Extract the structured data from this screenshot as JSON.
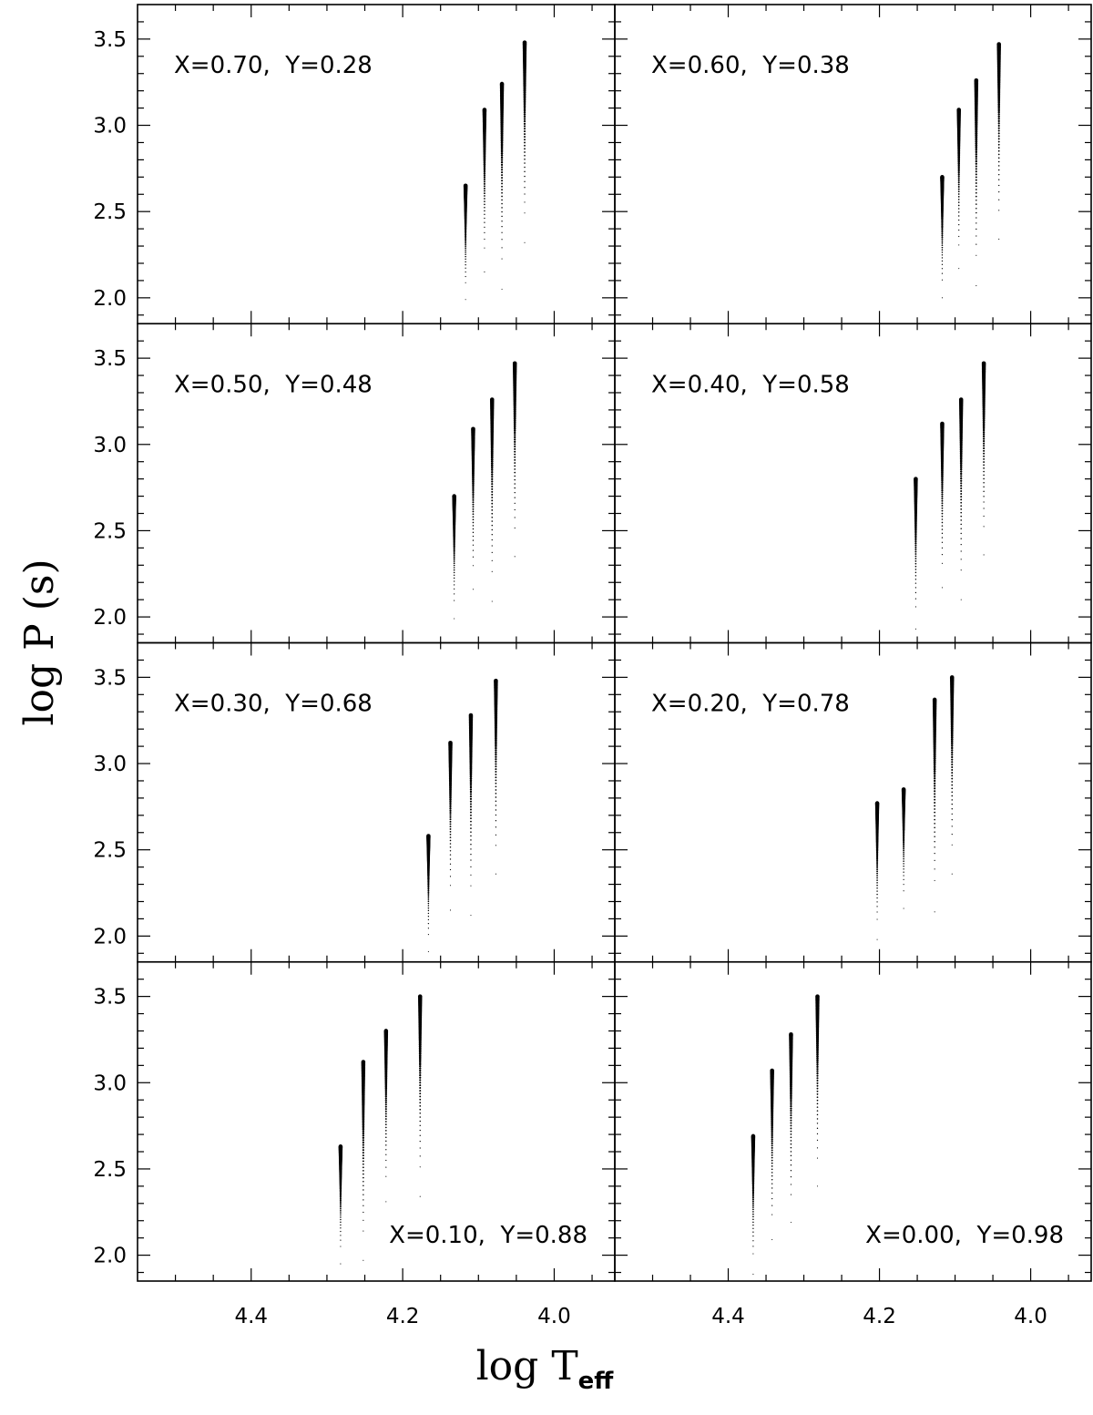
{
  "chart_data": {
    "type": "scatter",
    "layout": "4x2 grid of panels, shared axes",
    "xlabel": "log T",
    "xlabel_sub": "eff",
    "ylabel": "log P (s)",
    "x_reversed": true,
    "xlim": [
      4.55,
      3.92
    ],
    "ylim": [
      1.85,
      3.7
    ],
    "x_ticks": [
      4.4,
      4.2,
      4.0
    ],
    "x_tick_labels": [
      "4.4",
      "4.2",
      "4.0"
    ],
    "y_ticks": [
      2.0,
      2.5,
      3.0,
      3.5
    ],
    "y_tick_labels": [
      "2.0",
      "2.5",
      "3.0",
      "3.5"
    ],
    "panels": [
      {
        "label": "X=0.70,  Y=0.28",
        "label_pos": "top-left",
        "columns": [
          {
            "x": 4.117,
            "y_min": 1.99,
            "y_max": 2.65
          },
          {
            "x": 4.092,
            "y_min": 2.15,
            "y_max": 3.09
          },
          {
            "x": 4.069,
            "y_min": 2.05,
            "y_max": 3.24
          },
          {
            "x": 4.039,
            "y_min": 2.32,
            "y_max": 3.48
          }
        ]
      },
      {
        "label": "X=0.60,  Y=0.38",
        "label_pos": "top-left",
        "columns": [
          {
            "x": 4.117,
            "y_min": 2.0,
            "y_max": 2.7
          },
          {
            "x": 4.095,
            "y_min": 2.17,
            "y_max": 3.09
          },
          {
            "x": 4.072,
            "y_min": 2.07,
            "y_max": 3.26
          },
          {
            "x": 4.042,
            "y_min": 2.34,
            "y_max": 3.47
          }
        ]
      },
      {
        "label": "X=0.50,  Y=0.48",
        "label_pos": "top-left",
        "columns": [
          {
            "x": 4.132,
            "y_min": 1.99,
            "y_max": 2.7
          },
          {
            "x": 4.107,
            "y_min": 2.16,
            "y_max": 3.09
          },
          {
            "x": 4.082,
            "y_min": 2.09,
            "y_max": 3.26
          },
          {
            "x": 4.052,
            "y_min": 2.35,
            "y_max": 3.47
          }
        ]
      },
      {
        "label": "X=0.40,  Y=0.58",
        "label_pos": "top-left",
        "columns": [
          {
            "x": 4.152,
            "y_min": 1.93,
            "y_max": 2.8
          },
          {
            "x": 4.117,
            "y_min": 2.17,
            "y_max": 3.12
          },
          {
            "x": 4.092,
            "y_min": 2.1,
            "y_max": 3.26
          },
          {
            "x": 4.062,
            "y_min": 2.36,
            "y_max": 3.47
          }
        ]
      },
      {
        "label": "X=0.30,  Y=0.68",
        "label_pos": "top-left",
        "columns": [
          {
            "x": 4.166,
            "y_min": 1.91,
            "y_max": 2.58
          },
          {
            "x": 4.137,
            "y_min": 2.15,
            "y_max": 3.12
          },
          {
            "x": 4.11,
            "y_min": 2.12,
            "y_max": 3.28
          },
          {
            "x": 4.077,
            "y_min": 2.36,
            "y_max": 3.48
          }
        ]
      },
      {
        "label": "X=0.20,  Y=0.78",
        "label_pos": "top-left",
        "columns": [
          {
            "x": 4.203,
            "y_min": 1.98,
            "y_max": 2.77
          },
          {
            "x": 4.168,
            "y_min": 2.16,
            "y_max": 2.85
          },
          {
            "x": 4.127,
            "y_min": 2.14,
            "y_max": 3.37
          },
          {
            "x": 4.104,
            "y_min": 2.36,
            "y_max": 3.5
          }
        ]
      },
      {
        "label": "X=0.10,  Y=0.88",
        "label_pos": "bottom-right",
        "columns": [
          {
            "x": 4.282,
            "y_min": 1.95,
            "y_max": 2.63
          },
          {
            "x": 4.252,
            "y_min": 1.97,
            "y_max": 3.12
          },
          {
            "x": 4.222,
            "y_min": 2.31,
            "y_max": 3.3
          },
          {
            "x": 4.177,
            "y_min": 2.34,
            "y_max": 3.5
          }
        ]
      },
      {
        "label": "X=0.00,  Y=0.98",
        "label_pos": "bottom-right",
        "columns": [
          {
            "x": 4.367,
            "y_min": 1.89,
            "y_max": 2.69
          },
          {
            "x": 4.342,
            "y_min": 2.09,
            "y_max": 3.07
          },
          {
            "x": 4.317,
            "y_min": 2.19,
            "y_max": 3.28
          },
          {
            "x": 4.282,
            "y_min": 2.4,
            "y_max": 3.5
          }
        ]
      }
    ]
  }
}
